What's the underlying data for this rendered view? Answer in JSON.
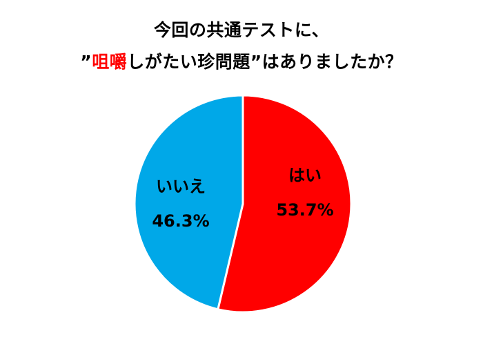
{
  "title": {
    "line1": "今回の共通テストに、",
    "line2_prefix": "”",
    "line2_highlight": "咀嚼",
    "line2_suffix": "しがたい珍問題”はありましたか？",
    "highlight_color": "#ff0000"
  },
  "chart_data": {
    "type": "pie",
    "title": "今回の共通テストに、”咀嚼しがたい珍問題”はありましたか？",
    "slices": [
      {
        "label": "はい",
        "value": 53.7,
        "value_label": "53.7%",
        "color": "#ff0000"
      },
      {
        "label": "いいえ",
        "value": 46.3,
        "value_label": "46.3%",
        "color": "#00a8e8"
      }
    ],
    "start_angle": "12 o'clock",
    "direction": "clockwise",
    "legend": "none"
  }
}
